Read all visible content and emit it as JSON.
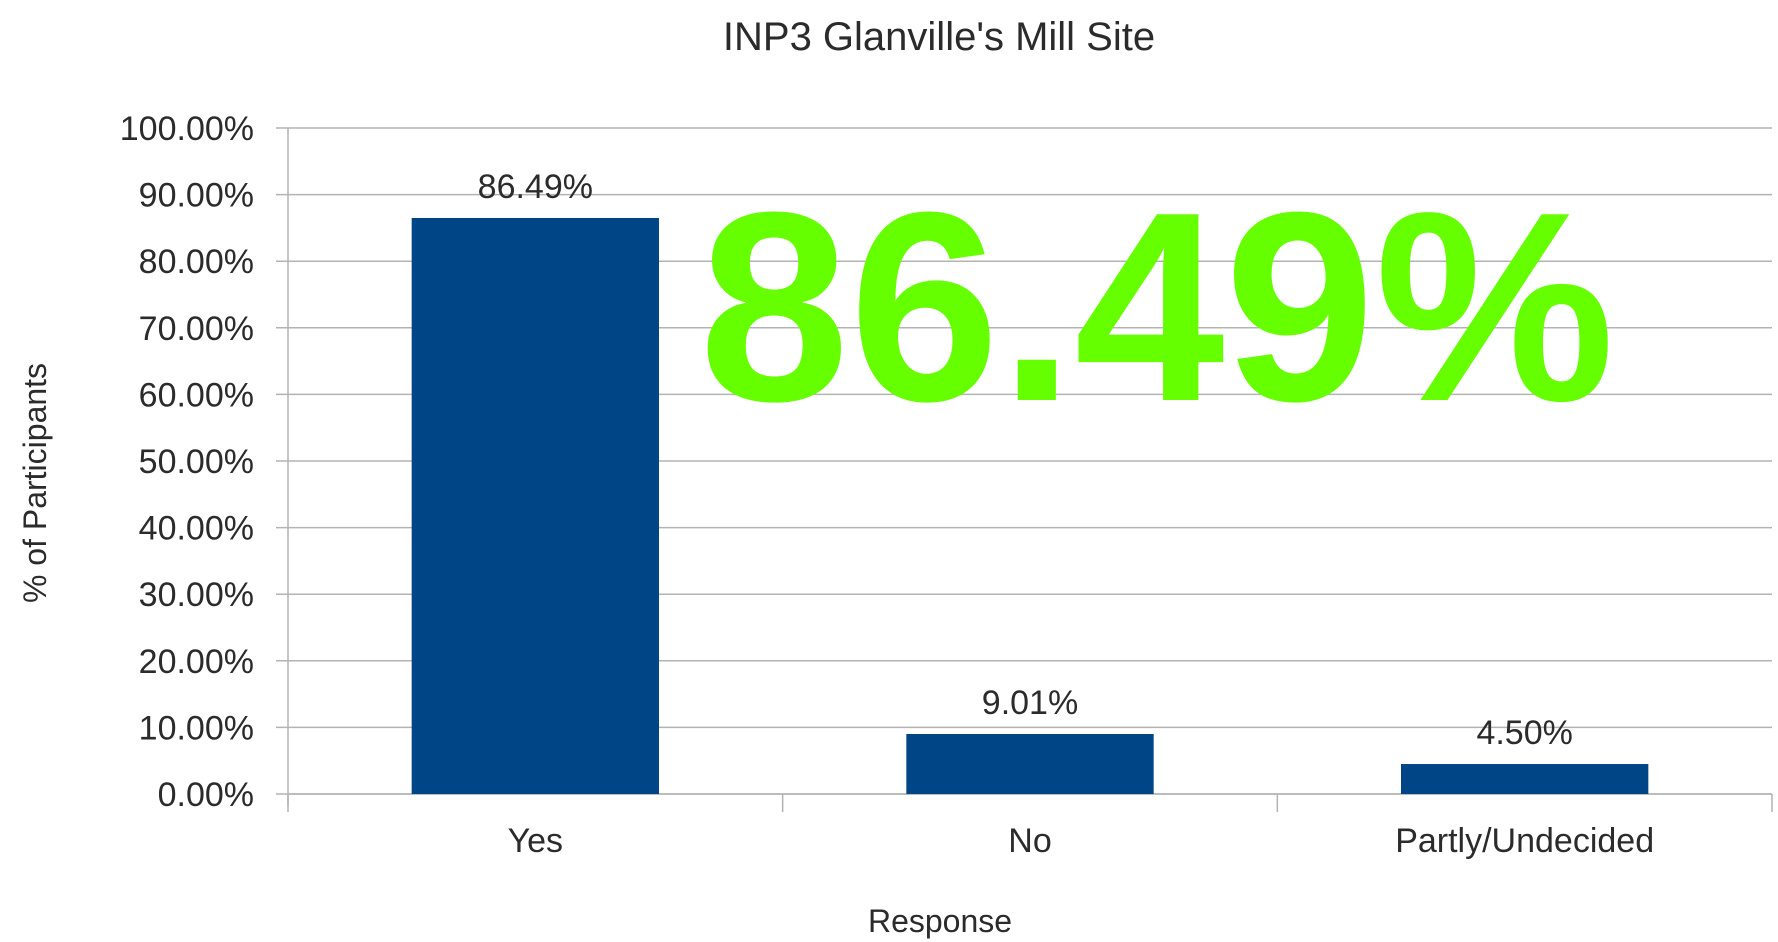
{
  "chart_data": {
    "type": "bar",
    "title": "INP3 Glanville's Mill Site",
    "xlabel": "Response",
    "ylabel": "% of Participants",
    "categories": [
      "Yes",
      "No",
      "Partly/Undecided"
    ],
    "values": [
      86.49,
      9.01,
      4.5
    ],
    "data_labels": [
      "86.49%",
      "9.01%",
      "4.50%"
    ],
    "ylim": [
      0,
      100
    ],
    "yticks": [
      0,
      10,
      20,
      30,
      40,
      50,
      60,
      70,
      80,
      90,
      100
    ],
    "ytick_labels": [
      "0.00%",
      "10.00%",
      "20.00%",
      "30.00%",
      "40.00%",
      "50.00%",
      "60.00%",
      "70.00%",
      "80.00%",
      "90.00%",
      "100.00%"
    ],
    "grid": true,
    "legend": "none",
    "bar_color": "#004586",
    "overlay_text": "86.49%",
    "overlay_color": "#66ff00"
  }
}
